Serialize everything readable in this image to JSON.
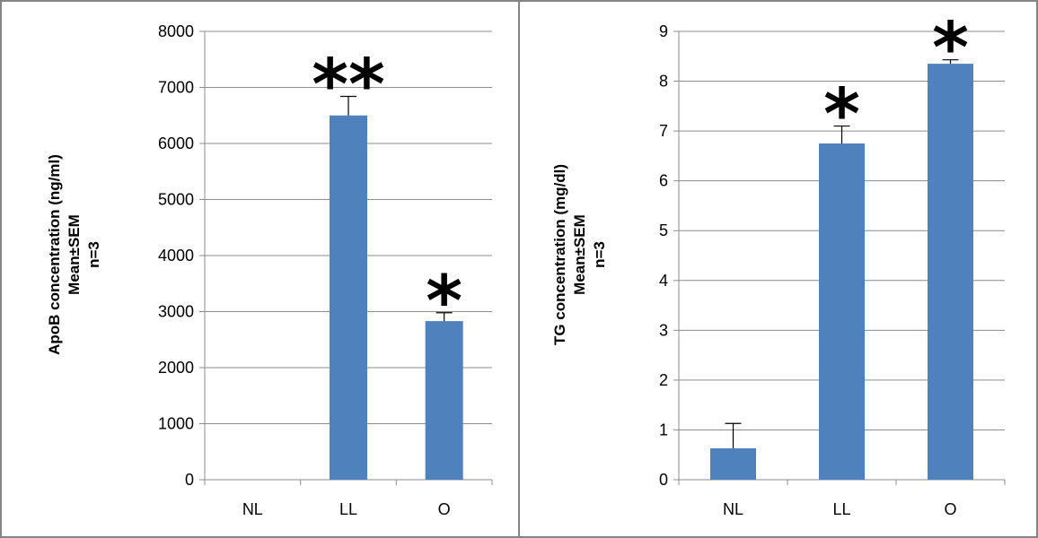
{
  "colors": {
    "bar": "#4f81bd",
    "grid": "#8c8c8c",
    "axis": "#8c8c8c",
    "border": "#858585"
  },
  "chart_data": [
    {
      "type": "bar",
      "categories": [
        "NL",
        "LL",
        "O"
      ],
      "values": [
        0,
        6500,
        2830
      ],
      "errors": [
        0,
        340,
        150
      ],
      "ylim": [
        0,
        8000
      ],
      "yticks": [
        0,
        1000,
        2000,
        3000,
        4000,
        5000,
        6000,
        7000,
        8000
      ],
      "ylabel_lines": [
        "ApoB concentration  (ng/ml)",
        "Mean±SEM",
        "n=3"
      ],
      "significance": [
        "",
        "**",
        "*"
      ],
      "grid": true
    },
    {
      "type": "bar",
      "categories": [
        "NL",
        "LL",
        "O"
      ],
      "values": [
        0.63,
        6.75,
        8.35
      ],
      "errors": [
        0.5,
        0.35,
        0.08
      ],
      "ylim": [
        0,
        9
      ],
      "yticks": [
        0,
        1,
        2,
        3,
        4,
        5,
        6,
        7,
        8,
        9
      ],
      "ylabel_lines": [
        "TG concentration  (mg/dl)",
        "Mean±SEM",
        "n=3"
      ],
      "significance": [
        "",
        "*",
        "*"
      ],
      "grid": true
    }
  ]
}
